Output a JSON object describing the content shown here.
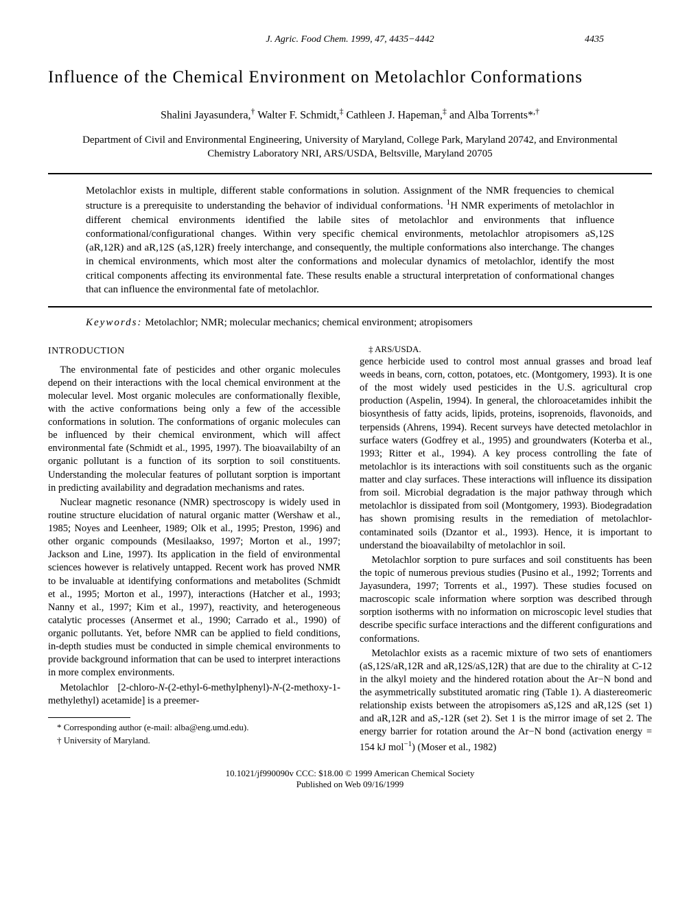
{
  "header": {
    "journal": "J. Agric. Food Chem. 1999, 47, 4435−4442",
    "page": "4435"
  },
  "title": "Influence of the Chemical Environment on Metolachlor Conformations",
  "authors_html": "Shalini Jayasundera,† Walter F. Schmidt,‡ Cathleen J. Hapeman,‡ and Alba Torrents*,†",
  "affiliation": "Department of Civil and Environmental Engineering, University of Maryland, College Park, Maryland 20742, and Environmental Chemistry Laboratory NRI, ARS/USDA, Beltsville, Maryland 20705",
  "abstract": "Metolachlor exists in multiple, different stable conformations in solution. Assignment of the NMR frequencies to chemical structure is a prerequisite to understanding the behavior of individual conformations. 1H NMR experiments of metolachlor in different chemical environments identified the labile sites of metolachlor and environments that influence conformational/configurational changes. Within very specific chemical environments, metolachlor atropisomers aS,12S (aR,12R) and aR,12S (aS,12R) freely interchange, and consequently, the multiple conformations also interchange. The changes in chemical environments, which most alter the conformations and molecular dynamics of metolachlor, identify the most critical components affecting its environmental fate. These results enable a structural interpretation of conformational changes that can influence the environmental fate of metolachlor.",
  "keywords_label": "Keywords:",
  "keywords": "Metolachlor; NMR; molecular mechanics; chemical environment; atropisomers",
  "section_heading": "INTRODUCTION",
  "body": {
    "p1": "The environmental fate of pesticides and other organic molecules depend on their interactions with the local chemical environment at the molecular level. Most organic molecules are conformationally flexible, with the active conformations being only a few of the accessible conformations in solution. The conformations of organic molecules can be influenced by their chemical environment, which will affect environmental fate (Schmidt et al., 1995, 1997). The bioavailabilty of an organic pollutant is a function of its sorption to soil constituents. Understanding the molecular features of pollutant sorption is important in predicting availability and degradation mechanisms and rates.",
    "p2": "Nuclear magnetic resonance (NMR) spectroscopy is widely used in routine structure elucidation of natural organic matter (Wershaw et al., 1985; Noyes and Leenheer, 1989; Olk et al., 1995; Preston, 1996) and other organic compounds (Mesilaakso, 1997; Morton et al., 1997; Jackson and Line, 1997). Its application in the field of environmental sciences however is relatively untapped. Recent work has proved NMR to be invaluable at identifying conformations and metabolites (Schmidt et al., 1995; Morton et al., 1997), interactions (Hatcher et al., 1993; Nanny et al., 1997; Kim et al., 1997), reactivity, and heterogeneous catalytic processes (Ansermet et al., 1990; Carrado et al., 1990) of organic pollutants. Yet, before NMR can be applied to field conditions, in-depth studies must be conducted in simple chemical environments to provide background information that can be used to interpret interactions in more complex environments.",
    "p3": "Metolachlor [2-chloro-N-(2-ethyl-6-methylphenyl)-N-(2-methoxy-1-methylethyl) acetamide] is a preemergence herbicide used to control most annual grasses and broad leaf weeds in beans, corn, cotton, potatoes, etc. (Montgomery, 1993). It is one of the most widely used pesticides in the U.S. agricultural crop production (Aspelin, 1994). In general, the chloroacetamides inhibit the biosynthesis of fatty acids, lipids, proteins, isoprenoids, flavonoids, and terpensids (Ahrens, 1994). Recent surveys have detected metolachlor in surface waters (Godfrey et al., 1995) and groundwaters (Koterba et al., 1993; Ritter et al., 1994). A key process controlling the fate of metolachlor is its interactions with soil constituents such as the organic matter and clay surfaces. These interactions will influence its dissipation from soil. Microbial degradation is the major pathway through which metolachlor is dissipated from soil (Montgomery, 1993). Biodegradation has shown promising results in the remediation of metolachlor-contaminated soils (Dzantor et al., 1993). Hence, it is important to understand the bioavailabilty of metolachlor in soil.",
    "p4": "Metolachlor sorption to pure surfaces and soil constituents has been the topic of numerous previous studies (Pusino et al., 1992; Torrents and Jayasundera, 1997; Torrents et al., 1997). These studies focused on macroscopic scale information where sorption was described through sorption isotherms with no information on microscopic level studies that describe specific surface interactions and the different configurations and conformations.",
    "p5": "Metolachlor exists as a racemic mixture of two sets of enantiomers (aS,12S/aR,12R and aR,12S/aS,12R) that are due to the chirality at C-12 in the alkyl moiety and the hindered rotation about the Ar−N bond and the asymmetrically substituted aromatic ring (Table 1). A diastereomeric relationship exists between the atropisomers aS,12S and aR,12S (set 1) and aR,12R and aS,-12R (set 2). Set 1 is the mirror image of set 2. The energy barrier for rotation around the Ar−N bond (activation energy = 154 kJ mol−1) (Moser et al., 1982)"
  },
  "footnotes": {
    "f1": "* Corresponding author (e-mail: alba@eng.umd.edu).",
    "f2": "† University of Maryland.",
    "f3": "‡ ARS/USDA."
  },
  "pubfooter": {
    "l1": "10.1021/jf990090v CCC: $18.00    © 1999 American Chemical Society",
    "l2": "Published on Web 09/16/1999"
  }
}
